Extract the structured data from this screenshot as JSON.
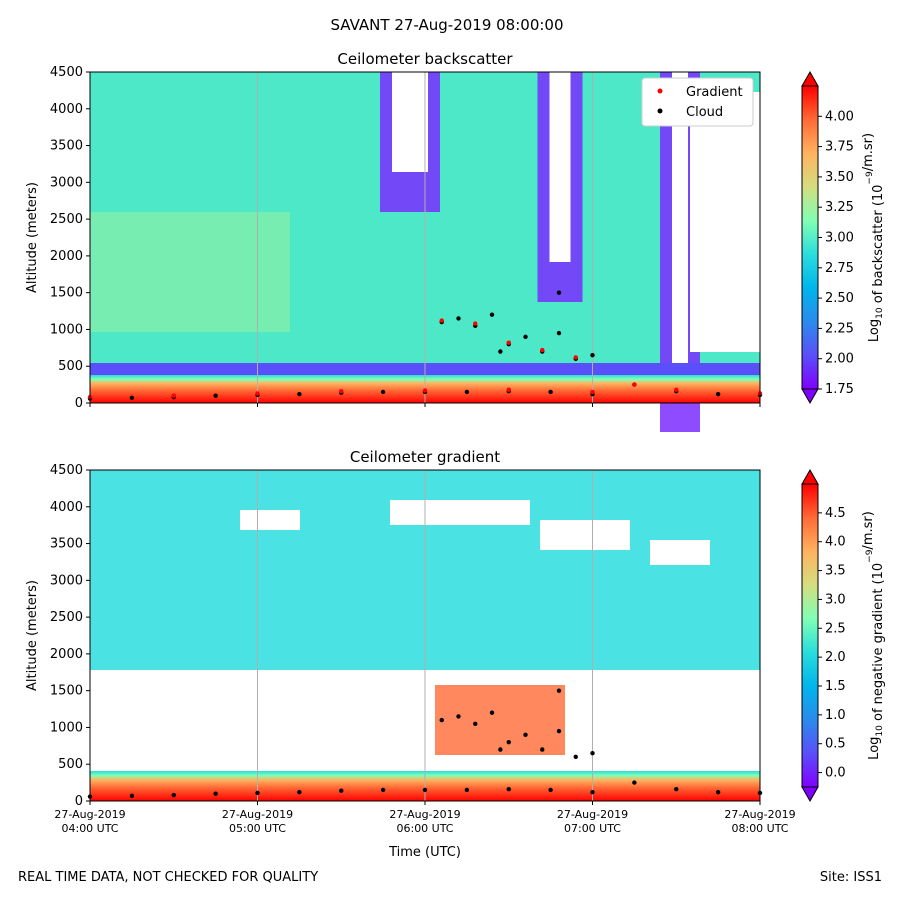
{
  "figure": {
    "suptitle": "SAVANT 27-Aug-2019 08:00:00",
    "footer_left": "REAL TIME DATA, NOT CHECKED FOR QUALITY",
    "footer_right": "Site: ISS1"
  },
  "colors": {
    "colormap": [
      "#8000ff",
      "#5a4ff9",
      "#2a8bed",
      "#00b5eb",
      "#2adddd",
      "#80ffb4",
      "#d4dd80",
      "#ffb360",
      "#ff6a36",
      "#ff0000"
    ],
    "gradient_marker": "#ff0000",
    "cloud_marker": "#000000",
    "gridline": "#b0b0b0"
  },
  "chart_data": [
    {
      "type": "heatmap",
      "title": "Ceilometer backscatter",
      "ylabel": "Altitude (meters)",
      "xlabel": "",
      "ylim": [
        0,
        4500
      ],
      "yticks": [
        "0",
        "500",
        "1000",
        "1500",
        "2000",
        "2500",
        "3000",
        "3500",
        "4000",
        "4500"
      ],
      "xlim": [
        "27-Aug-2019 04:00 UTC",
        "27-Aug-2019 08:00 UTC"
      ],
      "xticks": [],
      "grid": "vertical",
      "legend": {
        "placement": "top-right",
        "entries": [
          "Gradient",
          "Cloud"
        ]
      },
      "colorbar": {
        "label_prefix": "Log",
        "label_sub": "10",
        "label_mid": " of backscatter (10",
        "label_sup": "−9",
        "label_suffix": "/m.sr)",
        "range": [
          1.75,
          4.25
        ],
        "ticks": [
          "1.75",
          "2.00",
          "2.25",
          "2.50",
          "2.75",
          "3.00",
          "3.25",
          "3.50",
          "3.75",
          "4.00"
        ],
        "extend": "both"
      },
      "series": [
        {
          "name": "Cloud",
          "points": [
            [
              4.0,
              60
            ],
            [
              4.25,
              70
            ],
            [
              4.5,
              80
            ],
            [
              4.75,
              100
            ],
            [
              5.0,
              110
            ],
            [
              5.25,
              120
            ],
            [
              5.5,
              140
            ],
            [
              5.75,
              150
            ],
            [
              6.0,
              150
            ],
            [
              6.25,
              150
            ],
            [
              6.5,
              160
            ],
            [
              6.75,
              150
            ],
            [
              7.0,
              120
            ],
            [
              7.25,
              250
            ],
            [
              7.5,
              160
            ],
            [
              7.75,
              120
            ],
            [
              8.0,
              110
            ],
            [
              6.1,
              1100
            ],
            [
              6.2,
              1150
            ],
            [
              6.3,
              1050
            ],
            [
              6.4,
              1200
            ],
            [
              6.45,
              700
            ],
            [
              6.5,
              800
            ],
            [
              6.6,
              900
            ],
            [
              6.7,
              700
            ],
            [
              6.8,
              950
            ],
            [
              6.9,
              600
            ],
            [
              7.0,
              650
            ],
            [
              6.8,
              1500
            ]
          ]
        },
        {
          "name": "Gradient",
          "points": [
            [
              4.0,
              80
            ],
            [
              4.5,
              100
            ],
            [
              5.0,
              130
            ],
            [
              5.5,
              160
            ],
            [
              6.0,
              170
            ],
            [
              6.5,
              180
            ],
            [
              7.0,
              150
            ],
            [
              7.25,
              250
            ],
            [
              7.5,
              180
            ],
            [
              8.0,
              130
            ],
            [
              6.1,
              1120
            ],
            [
              6.3,
              1080
            ],
            [
              6.5,
              820
            ],
            [
              6.7,
              720
            ],
            [
              6.9,
              620
            ]
          ]
        }
      ]
    },
    {
      "type": "heatmap",
      "title": "Ceilometer gradient",
      "ylabel": "Altitude (meters)",
      "xlabel": "Time (UTC)",
      "ylim": [
        0,
        4500
      ],
      "yticks": [
        "0",
        "500",
        "1000",
        "1500",
        "2000",
        "2500",
        "3000",
        "3500",
        "4000",
        "4500"
      ],
      "xlim": [
        "27-Aug-2019 04:00 UTC",
        "27-Aug-2019 08:00 UTC"
      ],
      "xticks": [
        [
          "27-Aug-2019",
          "04:00 UTC"
        ],
        [
          "27-Aug-2019",
          "05:00 UTC"
        ],
        [
          "27-Aug-2019",
          "06:00 UTC"
        ],
        [
          "27-Aug-2019",
          "07:00 UTC"
        ],
        [
          "27-Aug-2019",
          "08:00 UTC"
        ]
      ],
      "grid": "vertical",
      "colorbar": {
        "label_prefix": "Log",
        "label_sub": "10",
        "label_mid": " of negative gradient (10",
        "label_sup": "−9",
        "label_suffix": "/m.sr)",
        "range": [
          -0.25,
          5.0
        ],
        "ticks": [
          "0.0",
          "0.5",
          "1.0",
          "1.5",
          "2.0",
          "2.5",
          "3.0",
          "3.5",
          "4.0",
          "4.5"
        ],
        "extend": "both"
      },
      "series": [
        {
          "name": "Cloud",
          "points": [
            [
              4.0,
              60
            ],
            [
              4.25,
              70
            ],
            [
              4.5,
              80
            ],
            [
              4.75,
              100
            ],
            [
              5.0,
              110
            ],
            [
              5.25,
              120
            ],
            [
              5.5,
              140
            ],
            [
              5.75,
              150
            ],
            [
              6.0,
              150
            ],
            [
              6.25,
              150
            ],
            [
              6.5,
              160
            ],
            [
              6.75,
              150
            ],
            [
              7.0,
              120
            ],
            [
              7.25,
              250
            ],
            [
              7.5,
              160
            ],
            [
              7.75,
              120
            ],
            [
              8.0,
              110
            ],
            [
              6.1,
              1100
            ],
            [
              6.2,
              1150
            ],
            [
              6.3,
              1050
            ],
            [
              6.4,
              1200
            ],
            [
              6.45,
              700
            ],
            [
              6.5,
              800
            ],
            [
              6.6,
              900
            ],
            [
              6.7,
              700
            ],
            [
              6.8,
              950
            ],
            [
              6.9,
              600
            ],
            [
              7.0,
              650
            ],
            [
              6.8,
              1500
            ]
          ]
        }
      ]
    }
  ]
}
